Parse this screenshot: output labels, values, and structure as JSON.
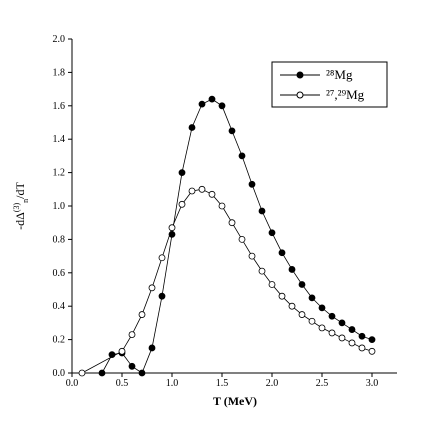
{
  "chart_data": {
    "type": "line",
    "x_label": "T (MeV)",
    "y_label": [
      "-dΔ",
      "(3)",
      "n",
      "/dT"
    ],
    "xlim": [
      0,
      3.25
    ],
    "ylim": [
      0,
      2.0
    ],
    "xticks": [
      {
        "value": 0,
        "label": "0.0"
      },
      0.5,
      {
        "value": 1,
        "label": "1.0"
      },
      1.5,
      {
        "value": 2,
        "label": "2.0"
      },
      2.5,
      {
        "value": 3,
        "label": "3.0"
      }
    ],
    "yticks": [
      {
        "value": 0,
        "label": "0.0"
      },
      0.2,
      0.4,
      0.6,
      0.8,
      {
        "value": 1,
        "label": "1.0"
      },
      1.2,
      1.4,
      1.6,
      1.8,
      {
        "value": 2,
        "label": "2.0"
      }
    ],
    "legend": "upper right",
    "series": [
      {
        "name": "²⁸Mg",
        "color": "#000000",
        "marker": "filled",
        "x": [
          0.3,
          0.4,
          0.5,
          0.6,
          0.7,
          0.8,
          0.9,
          1.0,
          1.1,
          1.2,
          1.3,
          1.4,
          1.5,
          1.6,
          1.7,
          1.8,
          1.9,
          2.0,
          2.1,
          2.2,
          2.3,
          2.4,
          2.5,
          2.6,
          2.7,
          2.8,
          2.9,
          3.0
        ],
        "values": [
          0.0,
          0.11,
          0.12,
          0.04,
          0.0,
          0.15,
          0.46,
          0.83,
          1.2,
          1.47,
          1.61,
          1.64,
          1.6,
          1.45,
          1.3,
          1.13,
          0.97,
          0.84,
          0.72,
          0.62,
          0.53,
          0.45,
          0.39,
          0.34,
          0.3,
          0.26,
          0.22,
          0.2
        ]
      },
      {
        "name": "²⁷,²⁹Mg",
        "color": "#000000",
        "marker": "open",
        "x": [
          0.1,
          0.5,
          0.6,
          0.7,
          0.8,
          0.9,
          1.0,
          1.1,
          1.2,
          1.3,
          1.4,
          1.5,
          1.6,
          1.7,
          1.8,
          1.9,
          2.0,
          2.1,
          2.2,
          2.3,
          2.4,
          2.5,
          2.6,
          2.7,
          2.8,
          2.9,
          3.0
        ],
        "values": [
          0.0,
          0.13,
          0.23,
          0.35,
          0.51,
          0.69,
          0.87,
          1.01,
          1.09,
          1.1,
          1.07,
          1.0,
          0.9,
          0.8,
          0.7,
          0.61,
          0.53,
          0.46,
          0.4,
          0.35,
          0.31,
          0.27,
          0.24,
          0.21,
          0.18,
          0.15,
          0.13
        ]
      }
    ]
  }
}
